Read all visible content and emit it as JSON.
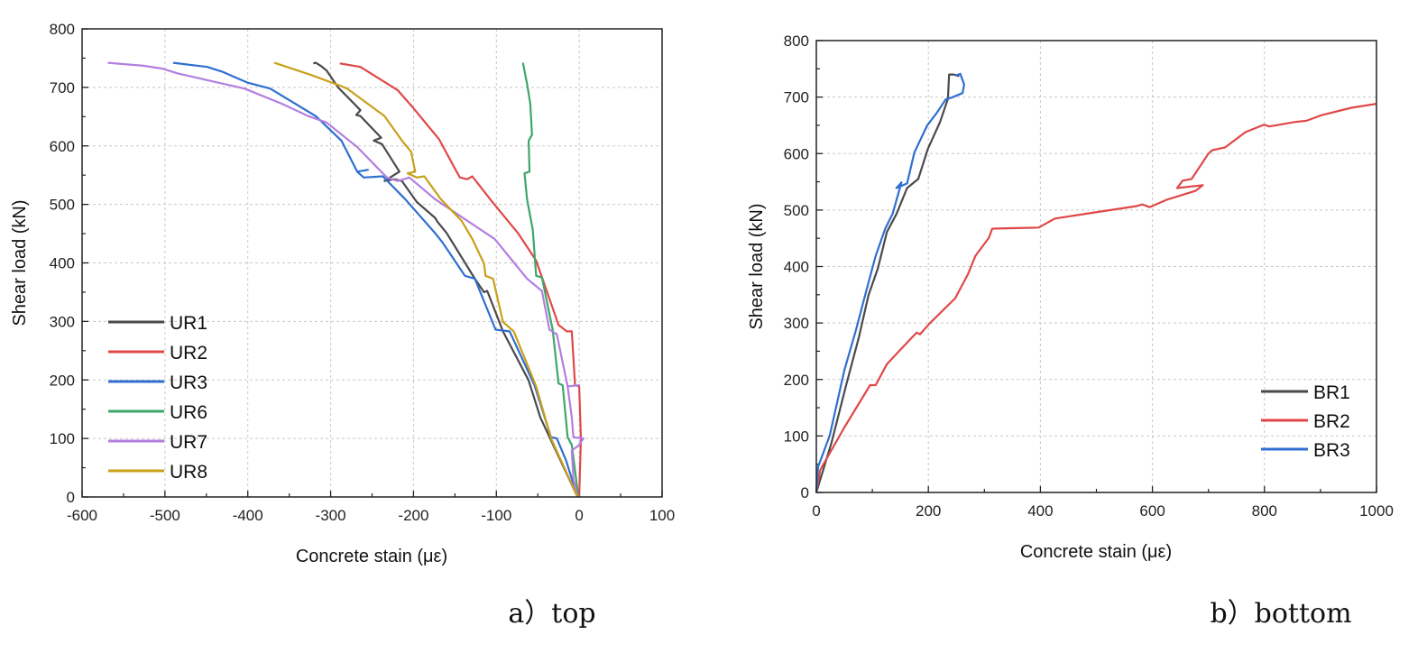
{
  "chart_data": [
    {
      "type": "line",
      "caption": "a）top",
      "xlabel": "Concrete stain (με)",
      "ylabel": "Shear load (kN)",
      "xlim": [
        -600,
        100
      ],
      "ylim": [
        0,
        800
      ],
      "xticks": [
        -600,
        -500,
        -400,
        -300,
        -200,
        -100,
        0,
        100
      ],
      "yticks": [
        0,
        100,
        200,
        300,
        400,
        500,
        600,
        700,
        800
      ],
      "grid": true,
      "legend_position": "bottom-left",
      "series": [
        {
          "name": "UR1",
          "color": "#4a4a4a",
          "points": [
            [
              -2,
              0
            ],
            [
              -47,
              136
            ],
            [
              -61,
              199
            ],
            [
              -92,
              283
            ],
            [
              -111,
              352
            ],
            [
              -115,
              350
            ],
            [
              -126,
              373
            ],
            [
              -160,
              451
            ],
            [
              -171,
              470
            ],
            [
              -174,
              477
            ],
            [
              -196,
              504
            ],
            [
              -214,
              540
            ],
            [
              -223,
              543
            ],
            [
              -235,
              540
            ],
            [
              -217,
              556
            ],
            [
              -238,
              603
            ],
            [
              -248,
              609
            ],
            [
              -239,
              614
            ],
            [
              -264,
              651
            ],
            [
              -269,
              653
            ],
            [
              -264,
              661
            ],
            [
              -291,
              700
            ],
            [
              -305,
              729
            ],
            [
              -312,
              737
            ],
            [
              -318,
              742
            ],
            [
              -321,
              741
            ]
          ]
        },
        {
          "name": "UR2",
          "color": "#e04848",
          "points": [
            [
              0,
              0
            ],
            [
              2,
              100
            ],
            [
              0,
              189
            ],
            [
              -5,
              191
            ],
            [
              -9,
              283
            ],
            [
              -15,
              283
            ],
            [
              -25,
              294
            ],
            [
              -52,
              404
            ],
            [
              -74,
              451
            ],
            [
              -106,
              506
            ],
            [
              -129,
              548
            ],
            [
              -135,
              543
            ],
            [
              -144,
              546
            ],
            [
              -148,
              556
            ],
            [
              -169,
              611
            ],
            [
              -201,
              666
            ],
            [
              -219,
              695
            ],
            [
              -237,
              711
            ],
            [
              -264,
              735
            ],
            [
              -289,
              741
            ]
          ]
        },
        {
          "name": "UR3",
          "color": "#2f6fd0",
          "points": [
            [
              -2,
              0
            ],
            [
              -16,
              63
            ],
            [
              -27,
              100
            ],
            [
              -34,
              102
            ],
            [
              -54,
              191
            ],
            [
              -84,
              283
            ],
            [
              -101,
              286
            ],
            [
              -126,
              373
            ],
            [
              -138,
              378
            ],
            [
              -165,
              435
            ],
            [
              -174,
              451
            ],
            [
              -210,
              509
            ],
            [
              -237,
              548
            ],
            [
              -260,
              546
            ],
            [
              -268,
              556
            ],
            [
              -255,
              559
            ],
            [
              -268,
              556
            ],
            [
              -287,
              609
            ],
            [
              -318,
              651
            ],
            [
              -373,
              698
            ],
            [
              -400,
              708
            ],
            [
              -431,
              727
            ],
            [
              -449,
              735
            ],
            [
              -490,
              742
            ]
          ]
        },
        {
          "name": "UR6",
          "color": "#3ea66a",
          "points": [
            [
              -1,
              0
            ],
            [
              -9,
              89
            ],
            [
              -14,
              102
            ],
            [
              -20,
              191
            ],
            [
              -25,
              194
            ],
            [
              -32,
              286
            ],
            [
              -45,
              375
            ],
            [
              -52,
              378
            ],
            [
              -56,
              456
            ],
            [
              -63,
              509
            ],
            [
              -66,
              553
            ],
            [
              -60,
              556
            ],
            [
              -61,
              609
            ],
            [
              -57,
              619
            ],
            [
              -59,
              672
            ],
            [
              -63,
              706
            ],
            [
              -68,
              742
            ]
          ]
        },
        {
          "name": "UR7",
          "color": "#b27fe0",
          "points": [
            [
              -2,
              0
            ],
            [
              -7,
              31
            ],
            [
              -9,
              79
            ],
            [
              0,
              89
            ],
            [
              5,
              100
            ],
            [
              -7,
              102
            ],
            [
              -9,
              136
            ],
            [
              -14,
              189
            ],
            [
              0,
              191
            ],
            [
              -14,
              189
            ],
            [
              -27,
              278
            ],
            [
              -36,
              286
            ],
            [
              -45,
              352
            ],
            [
              -63,
              373
            ],
            [
              -102,
              441
            ],
            [
              -133,
              470
            ],
            [
              -174,
              509
            ],
            [
              -205,
              546
            ],
            [
              -219,
              540
            ],
            [
              -232,
              546
            ],
            [
              -239,
              556
            ],
            [
              -268,
              598
            ],
            [
              -305,
              640
            ],
            [
              -327,
              651
            ],
            [
              -359,
              672
            ],
            [
              -404,
              698
            ],
            [
              -445,
              711
            ],
            [
              -485,
              724
            ],
            [
              -503,
              732
            ],
            [
              -526,
              737
            ],
            [
              -569,
              742
            ]
          ]
        },
        {
          "name": "UR8",
          "color": "#c9a01a",
          "points": [
            [
              -2,
              0
            ],
            [
              -34,
              100
            ],
            [
              -52,
              189
            ],
            [
              -79,
              283
            ],
            [
              -92,
              299
            ],
            [
              -104,
              373
            ],
            [
              -113,
              378
            ],
            [
              -115,
              399
            ],
            [
              -129,
              441
            ],
            [
              -142,
              472
            ],
            [
              -167,
              509
            ],
            [
              -187,
              548
            ],
            [
              -196,
              546
            ],
            [
              -207,
              553
            ],
            [
              -198,
              556
            ],
            [
              -203,
              590
            ],
            [
              -214,
              609
            ],
            [
              -235,
              651
            ],
            [
              -280,
              698
            ],
            [
              -289,
              703
            ],
            [
              -323,
              721
            ],
            [
              -368,
              742
            ]
          ]
        }
      ]
    },
    {
      "type": "line",
      "caption": "b）bottom",
      "xlabel": "Concrete stain (με)",
      "ylabel": "Shear load (kN)",
      "xlim": [
        0,
        1000
      ],
      "ylim": [
        0,
        800
      ],
      "xticks": [
        0,
        200,
        400,
        600,
        800,
        1000
      ],
      "yticks": [
        0,
        100,
        200,
        300,
        400,
        500,
        600,
        700,
        800
      ],
      "grid": true,
      "legend_position": "bottom-right",
      "series": [
        {
          "name": "BR1",
          "color": "#4a4a4a",
          "points": [
            [
              0,
              0
            ],
            [
              27,
              88
            ],
            [
              53,
              189
            ],
            [
              76,
              275
            ],
            [
              93,
              349
            ],
            [
              110,
              397
            ],
            [
              126,
              461
            ],
            [
              143,
              493
            ],
            [
              162,
              539
            ],
            [
              182,
              555
            ],
            [
              199,
              608
            ],
            [
              221,
              656
            ],
            [
              235,
              697
            ],
            [
              237,
              740
            ],
            [
              245,
              740
            ],
            [
              255,
              737
            ]
          ]
        },
        {
          "name": "BR2",
          "color": "#e04848",
          "points": [
            [
              0,
              0
            ],
            [
              7,
              40
            ],
            [
              50,
              115
            ],
            [
              96,
              190
            ],
            [
              106,
              190
            ],
            [
              126,
              227
            ],
            [
              156,
              259
            ],
            [
              179,
              283
            ],
            [
              185,
              280
            ],
            [
              202,
              299
            ],
            [
              248,
              344
            ],
            [
              271,
              387
            ],
            [
              284,
              419
            ],
            [
              308,
              451
            ],
            [
              314,
              467
            ],
            [
              397,
              469
            ],
            [
              426,
              485
            ],
            [
              492,
              495
            ],
            [
              572,
              507
            ],
            [
              582,
              510
            ],
            [
              595,
              505
            ],
            [
              625,
              518
            ],
            [
              677,
              534
            ],
            [
              690,
              544
            ],
            [
              644,
              539
            ],
            [
              654,
              552
            ],
            [
              670,
              555
            ],
            [
              700,
              600
            ],
            [
              707,
              606
            ],
            [
              730,
              611
            ],
            [
              766,
              638
            ],
            [
              799,
              651
            ],
            [
              809,
              648
            ],
            [
              855,
              656
            ],
            [
              875,
              658
            ],
            [
              902,
              668
            ],
            [
              955,
              681
            ],
            [
              1000,
              688
            ]
          ]
        },
        {
          "name": "BR3",
          "color": "#2f6fd0",
          "points": [
            [
              0,
              0
            ],
            [
              3,
              45
            ],
            [
              24,
              101
            ],
            [
              50,
              216
            ],
            [
              70,
              285
            ],
            [
              90,
              360
            ],
            [
              106,
              419
            ],
            [
              123,
              467
            ],
            [
              136,
              493
            ],
            [
              152,
              549
            ],
            [
              143,
              539
            ],
            [
              162,
              547
            ],
            [
              175,
              602
            ],
            [
              198,
              650
            ],
            [
              215,
              672
            ],
            [
              231,
              696
            ],
            [
              241,
              699
            ],
            [
              261,
              707
            ],
            [
              264,
              722
            ],
            [
              257,
              741
            ],
            [
              248,
              738
            ]
          ]
        }
      ]
    }
  ]
}
